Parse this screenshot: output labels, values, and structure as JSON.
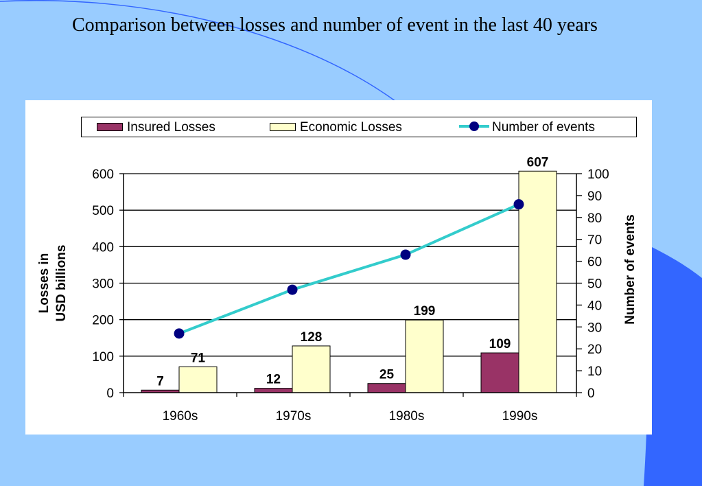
{
  "slide": {
    "title": "Comparison between losses and number of event in the last 40 years"
  },
  "colors": {
    "background": "#99ccff",
    "accent_shape": "#3366ff",
    "insured": "#993366",
    "economic": "#ffffcc",
    "events_line": "#33cccc",
    "events_marker": "#000080"
  },
  "chart_data": {
    "type": "bar",
    "categories": [
      "1960s",
      "1970s",
      "1980s",
      "1990s"
    ],
    "series": [
      {
        "name": "Insured Losses",
        "type": "bar",
        "axis": "left",
        "values": [
          7,
          12,
          25,
          109
        ]
      },
      {
        "name": "Economic Losses",
        "type": "bar",
        "axis": "left",
        "values": [
          71,
          128,
          199,
          607
        ]
      },
      {
        "name": "Number of events",
        "type": "line",
        "axis": "right",
        "values": [
          27,
          47,
          63,
          86
        ]
      }
    ],
    "ylabel": "Losses in USD billions",
    "ylabel_lines": [
      "Losses in",
      "USD billions"
    ],
    "y2label": "Number of events",
    "ylim": [
      0,
      600
    ],
    "y2lim": [
      0,
      100
    ],
    "yticks": [
      0,
      100,
      200,
      300,
      400,
      500,
      600
    ],
    "y2ticks": [
      0,
      10,
      20,
      30,
      40,
      50,
      60,
      70,
      80,
      90,
      100
    ],
    "grid": true,
    "legend_position": "top"
  }
}
